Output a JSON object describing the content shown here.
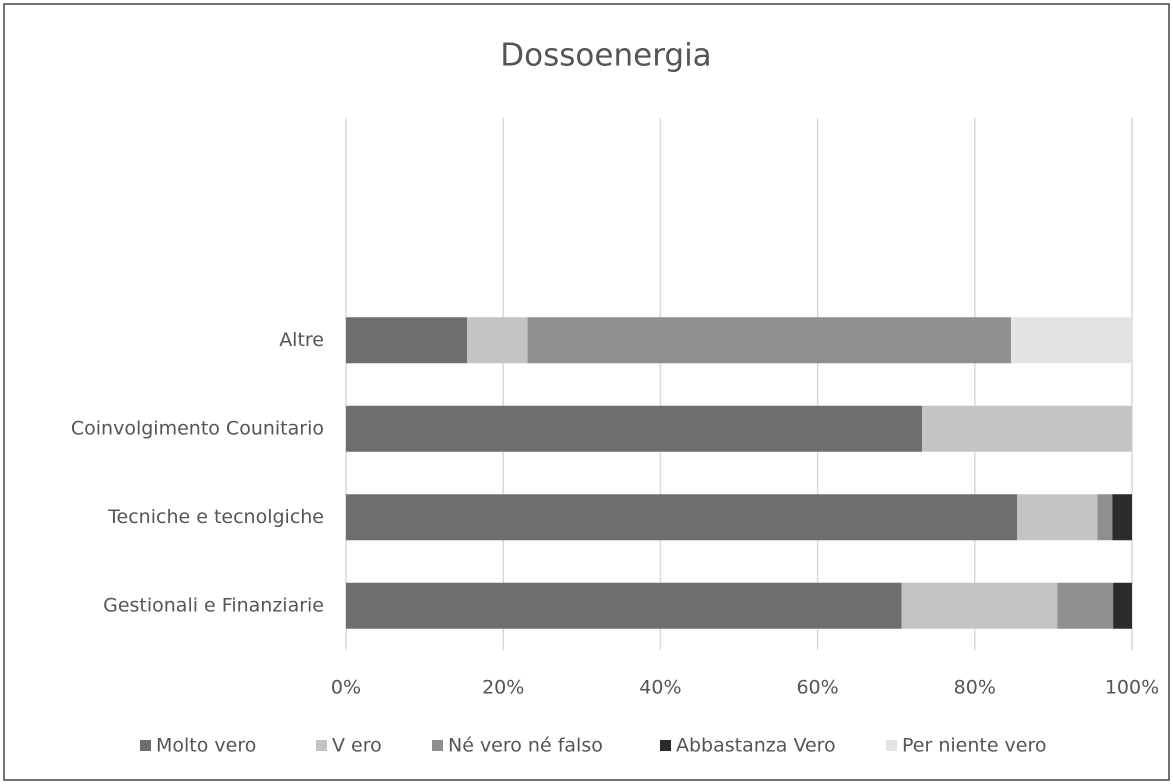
{
  "chart_data": {
    "type": "stacked_barh",
    "title": "Dossoenergia",
    "categories": [
      "Altre",
      "Coinvolgimento Counitario",
      "Tecniche e tecnolgiche",
      "Gestionali e Finanziarie"
    ],
    "series": [
      {
        "name": "Molto vero",
        "color": "#6e6e6e",
        "values": [
          15.4,
          73.3,
          85.4,
          70.7
        ]
      },
      {
        "name": "V ero",
        "color": "#c4c4c4",
        "values": [
          7.7,
          26.7,
          10.2,
          19.8
        ]
      },
      {
        "name": "Né vero né falso",
        "color": "#8f8f8f",
        "values": [
          61.5,
          0,
          1.9,
          7.1
        ]
      },
      {
        "name": "Abbastanza Vero",
        "color": "#2b2b2b",
        "values": [
          0,
          0,
          2.5,
          2.4
        ]
      },
      {
        "name": "Per niente vero",
        "color": "#e3e3e3",
        "values": [
          15.4,
          0,
          0,
          0
        ]
      }
    ],
    "xlim": [
      0,
      100
    ],
    "xticks": [
      {
        "value": 0,
        "label": "0%"
      },
      {
        "value": 20,
        "label": "20%"
      },
      {
        "value": 40,
        "label": "40%"
      },
      {
        "value": 60,
        "label": "60%"
      },
      {
        "value": 80,
        "label": "80%"
      },
      {
        "value": 100,
        "label": "100%"
      }
    ],
    "grid": true
  }
}
